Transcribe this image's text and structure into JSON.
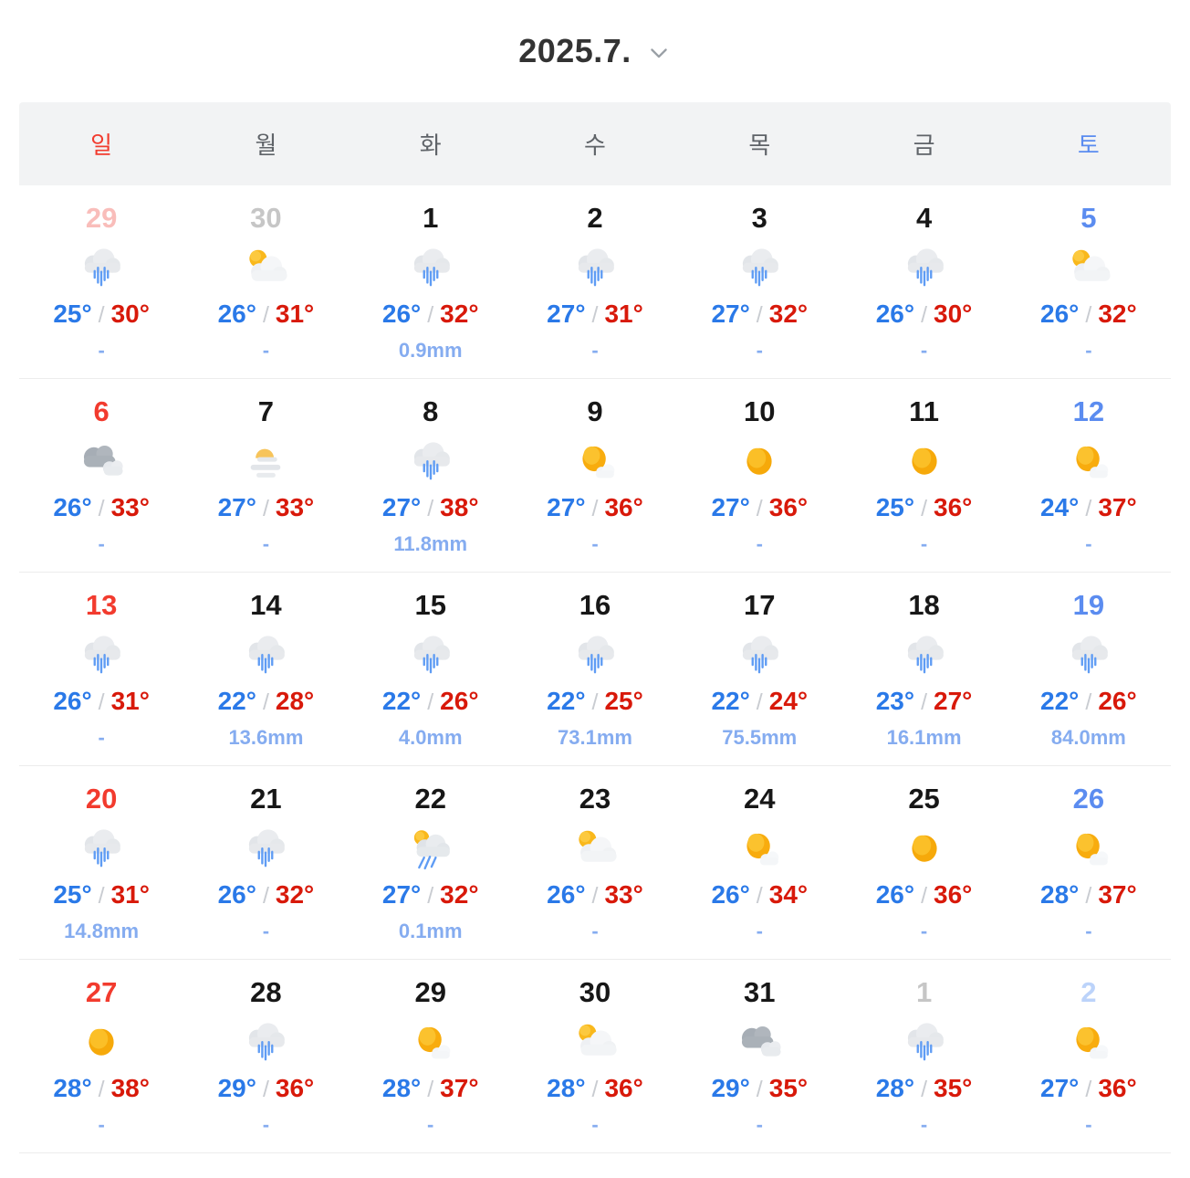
{
  "header": {
    "title": "2025.7.",
    "dropdown_icon": "chevron-down"
  },
  "weekdays": [
    {
      "label": "일",
      "type": "sun"
    },
    {
      "label": "월",
      "type": "weekday"
    },
    {
      "label": "화",
      "type": "weekday"
    },
    {
      "label": "수",
      "type": "weekday"
    },
    {
      "label": "목",
      "type": "weekday"
    },
    {
      "label": "금",
      "type": "weekday"
    },
    {
      "label": "토",
      "type": "sat"
    }
  ],
  "colors": {
    "sunday_red": "#f23b2e",
    "saturday_blue": "#5b8cf0",
    "low_temp_blue": "#2a79e8",
    "high_temp_red": "#d8190a",
    "precip_blue": "#85acf0",
    "out_month_gray": "#c6c6c6",
    "out_month_sunday_pink": "#f9bdba",
    "out_month_saturday_blue": "#bcd3fa",
    "weekday_header_bg": "#f2f3f4"
  },
  "weeks": [
    [
      {
        "day": "29",
        "state": "out-sun",
        "icon": "rainy",
        "low": "25°",
        "high": "30°",
        "precip": "-"
      },
      {
        "day": "30",
        "state": "out",
        "icon": "partly-cloudy",
        "low": "26°",
        "high": "31°",
        "precip": "-"
      },
      {
        "day": "1",
        "state": "normal",
        "icon": "rainy",
        "low": "26°",
        "high": "32°",
        "precip": "0.9mm"
      },
      {
        "day": "2",
        "state": "normal",
        "icon": "rainy",
        "low": "27°",
        "high": "31°",
        "precip": "-"
      },
      {
        "day": "3",
        "state": "normal",
        "icon": "rainy",
        "low": "27°",
        "high": "32°",
        "precip": "-"
      },
      {
        "day": "4",
        "state": "normal",
        "icon": "rainy",
        "low": "26°",
        "high": "30°",
        "precip": "-"
      },
      {
        "day": "5",
        "state": "sat",
        "icon": "partly-cloudy",
        "low": "26°",
        "high": "32°",
        "precip": "-"
      }
    ],
    [
      {
        "day": "6",
        "state": "sun",
        "icon": "cloudy",
        "low": "26°",
        "high": "33°",
        "precip": "-"
      },
      {
        "day": "7",
        "state": "normal",
        "icon": "hazy-sun",
        "low": "27°",
        "high": "33°",
        "precip": "-"
      },
      {
        "day": "8",
        "state": "normal",
        "icon": "rainy",
        "low": "27°",
        "high": "38°",
        "precip": "11.8mm"
      },
      {
        "day": "9",
        "state": "normal",
        "icon": "mostly-sunny",
        "low": "27°",
        "high": "36°",
        "precip": "-"
      },
      {
        "day": "10",
        "state": "normal",
        "icon": "sunny",
        "low": "27°",
        "high": "36°",
        "precip": "-"
      },
      {
        "day": "11",
        "state": "normal",
        "icon": "sunny",
        "low": "25°",
        "high": "36°",
        "precip": "-"
      },
      {
        "day": "12",
        "state": "sat",
        "icon": "mostly-sunny",
        "low": "24°",
        "high": "37°",
        "precip": "-"
      }
    ],
    [
      {
        "day": "13",
        "state": "sun",
        "icon": "rainy",
        "low": "26°",
        "high": "31°",
        "precip": "-"
      },
      {
        "day": "14",
        "state": "normal",
        "icon": "rainy",
        "low": "22°",
        "high": "28°",
        "precip": "13.6mm"
      },
      {
        "day": "15",
        "state": "normal",
        "icon": "rainy",
        "low": "22°",
        "high": "26°",
        "precip": "4.0mm"
      },
      {
        "day": "16",
        "state": "normal",
        "icon": "rainy",
        "low": "22°",
        "high": "25°",
        "precip": "73.1mm"
      },
      {
        "day": "17",
        "state": "normal",
        "icon": "rainy",
        "low": "22°",
        "high": "24°",
        "precip": "75.5mm"
      },
      {
        "day": "18",
        "state": "normal",
        "icon": "rainy",
        "low": "23°",
        "high": "27°",
        "precip": "16.1mm"
      },
      {
        "day": "19",
        "state": "sat",
        "icon": "rainy",
        "low": "22°",
        "high": "26°",
        "precip": "84.0mm"
      }
    ],
    [
      {
        "day": "20",
        "state": "sun",
        "icon": "rainy",
        "low": "25°",
        "high": "31°",
        "precip": "14.8mm"
      },
      {
        "day": "21",
        "state": "normal",
        "icon": "rainy",
        "low": "26°",
        "high": "32°",
        "precip": "-"
      },
      {
        "day": "22",
        "state": "normal",
        "icon": "sun-shower",
        "low": "27°",
        "high": "32°",
        "precip": "0.1mm"
      },
      {
        "day": "23",
        "state": "normal",
        "icon": "partly-cloudy",
        "low": "26°",
        "high": "33°",
        "precip": "-"
      },
      {
        "day": "24",
        "state": "normal",
        "icon": "mostly-sunny",
        "low": "26°",
        "high": "34°",
        "precip": "-"
      },
      {
        "day": "25",
        "state": "normal",
        "icon": "sunny",
        "low": "26°",
        "high": "36°",
        "precip": "-"
      },
      {
        "day": "26",
        "state": "sat",
        "icon": "mostly-sunny",
        "low": "28°",
        "high": "37°",
        "precip": "-"
      }
    ],
    [
      {
        "day": "27",
        "state": "sun",
        "icon": "sunny",
        "low": "28°",
        "high": "38°",
        "precip": "-"
      },
      {
        "day": "28",
        "state": "normal",
        "icon": "rainy",
        "low": "29°",
        "high": "36°",
        "precip": "-"
      },
      {
        "day": "29",
        "state": "normal",
        "icon": "mostly-sunny",
        "low": "28°",
        "high": "37°",
        "precip": "-"
      },
      {
        "day": "30",
        "state": "normal",
        "icon": "partly-cloudy",
        "low": "28°",
        "high": "36°",
        "precip": "-"
      },
      {
        "day": "31",
        "state": "normal",
        "icon": "cloudy",
        "low": "29°",
        "high": "35°",
        "precip": "-"
      },
      {
        "day": "1",
        "state": "out",
        "icon": "rainy",
        "low": "28°",
        "high": "35°",
        "precip": "-"
      },
      {
        "day": "2",
        "state": "out-sat",
        "icon": "mostly-sunny",
        "low": "27°",
        "high": "36°",
        "precip": "-"
      }
    ]
  ]
}
